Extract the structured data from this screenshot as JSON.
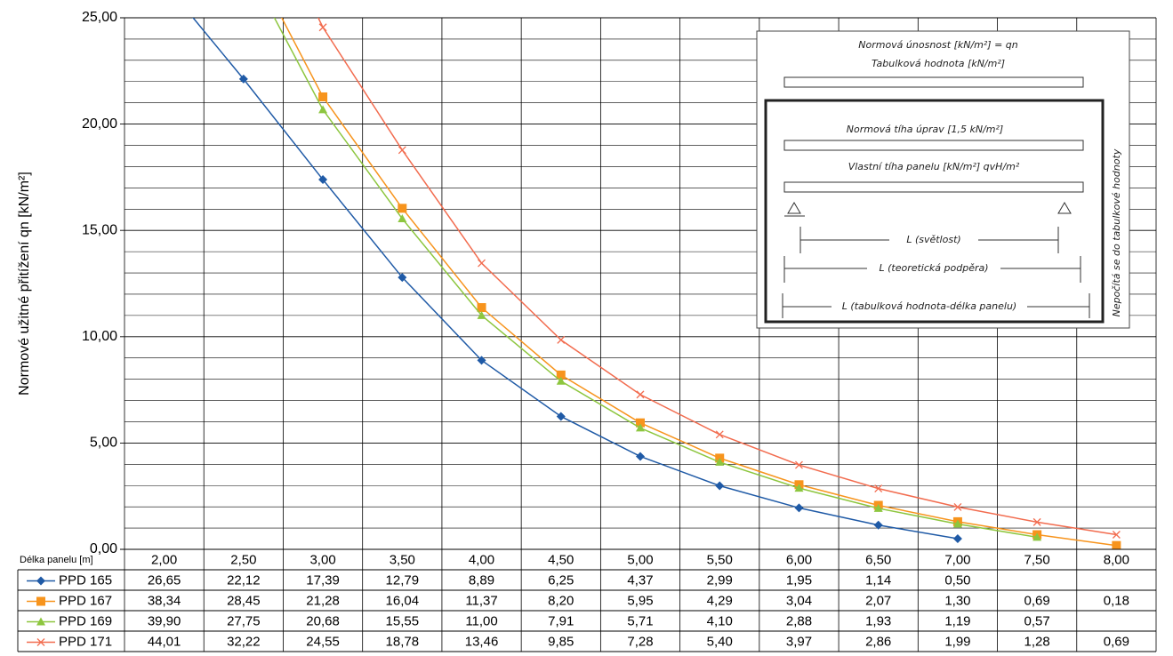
{
  "chart_data": {
    "type": "line",
    "y_label": "Normové užitné přitížení qn [kN/m²]",
    "table_header": "Délka panelu [m]",
    "categories": [
      "2,00",
      "2,50",
      "3,00",
      "3,50",
      "4,00",
      "4,50",
      "5,00",
      "5,50",
      "6,00",
      "6,50",
      "7,00",
      "7,50",
      "8,00"
    ],
    "series": [
      {
        "name": "PPD 165",
        "color": "#1f5aa6",
        "marker": "diamond",
        "values": [
          26.65,
          22.12,
          17.39,
          12.79,
          8.89,
          6.25,
          4.37,
          2.99,
          1.95,
          1.14,
          0.5,
          null,
          null
        ],
        "value_labels": [
          "26,65",
          "22,12",
          "17,39",
          "12,79",
          "8,89",
          "6,25",
          "4,37",
          "2,99",
          "1,95",
          "1,14",
          "0,50",
          null,
          null
        ]
      },
      {
        "name": "PPD 167",
        "color": "#f7941d",
        "marker": "square",
        "values": [
          38.34,
          28.45,
          21.28,
          16.04,
          11.37,
          8.2,
          5.95,
          4.29,
          3.04,
          2.07,
          1.3,
          0.69,
          0.18
        ],
        "value_labels": [
          "38,34",
          "28,45",
          "21,28",
          "16,04",
          "11,37",
          "8,20",
          "5,95",
          "4,29",
          "3,04",
          "2,07",
          "1,30",
          "0,69",
          "0,18"
        ]
      },
      {
        "name": "PPD 169",
        "color": "#8dc63f",
        "marker": "triangle",
        "values": [
          39.9,
          27.75,
          20.68,
          15.55,
          11.0,
          7.91,
          5.71,
          4.1,
          2.88,
          1.93,
          1.19,
          0.57,
          null
        ],
        "value_labels": [
          "39,90",
          "27,75",
          "20,68",
          "15,55",
          "11,00",
          "7,91",
          "5,71",
          "4,10",
          "2,88",
          "1,93",
          "1,19",
          "0,57",
          null
        ]
      },
      {
        "name": "PPD 171",
        "color": "#f26c4f",
        "marker": "x",
        "values": [
          44.01,
          32.22,
          24.55,
          18.78,
          13.46,
          9.85,
          7.28,
          5.4,
          3.97,
          2.86,
          1.99,
          1.28,
          0.69
        ],
        "value_labels": [
          "44,01",
          "32,22",
          "24,55",
          "18,78",
          "13,46",
          "9,85",
          "7,28",
          "5,40",
          "3,97",
          "2,86",
          "1,99",
          "1,28",
          "0,69"
        ]
      }
    ],
    "ylim": [
      0,
      25
    ],
    "yticks": [
      {
        "value": 0,
        "label": "0,00"
      },
      {
        "value": 5,
        "label": "5,00"
      },
      {
        "value": 10,
        "label": "10,00"
      },
      {
        "value": 15,
        "label": "15,00"
      },
      {
        "value": 20,
        "label": "20,00"
      },
      {
        "value": 25,
        "label": "25,00"
      }
    ],
    "minor_yticks": [
      1,
      2,
      3,
      4,
      6,
      7,
      8,
      9,
      11,
      12,
      13,
      14,
      16,
      17,
      18,
      19,
      21,
      22,
      23,
      24
    ],
    "grid": true,
    "annotations": [
      "Normová únosnost [kN/m²] = qn",
      "Tabulková hodnota [kN/m²]",
      "Normová tíha úprav [1,5 kN/m²]",
      "Vlastní tíha panelu [kN/m²]   qvH/m²",
      "L (světlost)",
      "L (teoretická podpěra)",
      "L (tabulková hodnota-délka panelu)",
      "Nepočítá se do tabulkové hodnoty"
    ]
  }
}
